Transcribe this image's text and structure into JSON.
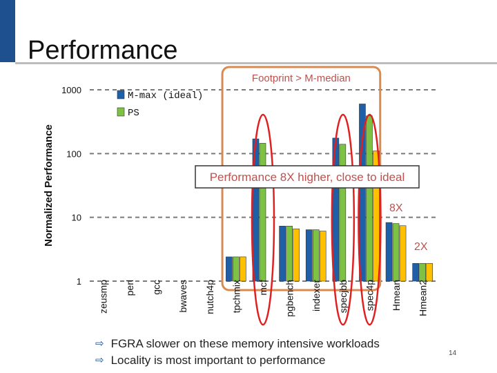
{
  "slide": {
    "title": "Performance",
    "page_number": "14",
    "bullets": [
      "FGRA slower on these memory intensive workloads",
      "Locality is most important to performance"
    ]
  },
  "colors": {
    "mmax": "#1f5fa8",
    "ps": "#7dc243",
    "third": "#ffc000",
    "highlight": "#d0d0d0",
    "ellipse": "#e02020",
    "box": "#d98a50",
    "accent": "#1e4f8f"
  },
  "annotations": {
    "footprint_box_label": "Footprint > M-median",
    "callout": "Performance 8X higher, close to ideal",
    "label_8x": "8X",
    "label_2x": "2X"
  },
  "chart_data": {
    "type": "bar",
    "scale": "log",
    "ylabel": "Normalized Performance",
    "ylim": [
      1,
      1000
    ],
    "yticks": [
      1,
      10,
      100,
      1000
    ],
    "grid": true,
    "legend_placement": "top-left",
    "categories": [
      "zeusmp",
      "perl",
      "gcc",
      "bwaves",
      "nutch4p",
      "tpchmix",
      "mcf",
      "pgbench",
      "indexer",
      "specjbb",
      "spec4p",
      "Hmean",
      "Hmean2"
    ],
    "series": [
      {
        "name": "M-max (ideal)",
        "color": "#1f5fa8",
        "values": [
          1,
          1,
          1,
          1,
          1,
          2.4,
          170,
          7.3,
          6.4,
          175,
          600,
          8.3,
          1.9
        ]
      },
      {
        "name": "PS",
        "color": "#7dc243",
        "values": [
          1,
          1,
          1,
          1,
          1,
          2.4,
          145,
          7.3,
          6.4,
          140,
          390,
          8.0,
          1.9
        ]
      },
      {
        "name": "",
        "color": "#ffc000",
        "values": [
          1,
          1,
          1,
          1,
          1,
          2.4,
          1,
          6.6,
          6.1,
          1,
          110,
          7.4,
          1.9
        ]
      }
    ]
  }
}
